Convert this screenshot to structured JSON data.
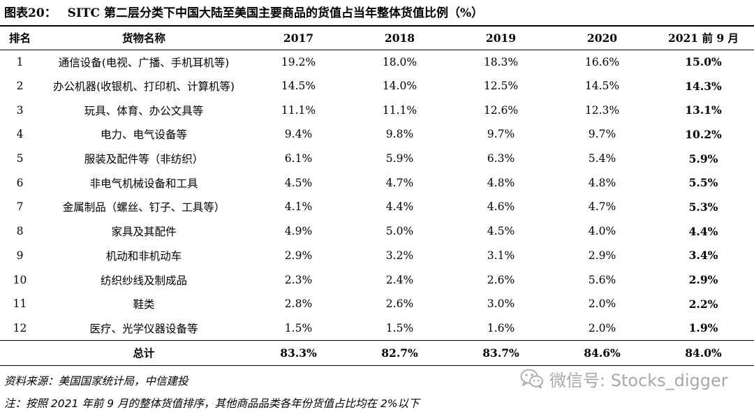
{
  "title": {
    "figure": "图表20：",
    "text": "SITC 第二层分类下中国大陆至美国主要商品的货值占当年整体货值比例（%）"
  },
  "table": {
    "headers": [
      "排名",
      "货物名称",
      "2017",
      "2018",
      "2019",
      "2020",
      "2021 前 9 月"
    ],
    "rows": [
      {
        "rank": "1",
        "name": "通信设备(电视、广播、手机耳机等)",
        "values": [
          "19.2%",
          "18.0%",
          "18.3%",
          "16.6%",
          "15.0%"
        ]
      },
      {
        "rank": "2",
        "name": "办公机器(收银机、打印机、计算机等)",
        "values": [
          "14.5%",
          "14.0%",
          "12.5%",
          "14.5%",
          "14.3%"
        ]
      },
      {
        "rank": "3",
        "name": "玩具、体育、办公文具等",
        "values": [
          "11.1%",
          "11.1%",
          "12.6%",
          "12.3%",
          "13.1%"
        ]
      },
      {
        "rank": "4",
        "name": "电力、电气设备等",
        "values": [
          "9.4%",
          "9.8%",
          "9.7%",
          "9.7%",
          "10.2%"
        ]
      },
      {
        "rank": "5",
        "name": "服装及配件等（非纺织）",
        "values": [
          "6.1%",
          "5.9%",
          "6.3%",
          "5.4%",
          "5.9%"
        ]
      },
      {
        "rank": "6",
        "name": "非电气机械设备和工具",
        "values": [
          "4.5%",
          "4.7%",
          "4.8%",
          "4.8%",
          "5.5%"
        ]
      },
      {
        "rank": "7",
        "name": "金属制品（螺丝、钉子、工具等）",
        "values": [
          "4.1%",
          "4.4%",
          "4.6%",
          "4.7%",
          "5.3%"
        ]
      },
      {
        "rank": "8",
        "name": "家具及其配件",
        "values": [
          "4.9%",
          "5.0%",
          "4.5%",
          "4.0%",
          "4.4%"
        ]
      },
      {
        "rank": "9",
        "name": "机动和非机动车",
        "values": [
          "2.9%",
          "3.2%",
          "3.1%",
          "2.9%",
          "3.4%"
        ]
      },
      {
        "rank": "10",
        "name": "纺织纱线及制成品",
        "values": [
          "2.3%",
          "2.4%",
          "2.6%",
          "5.6%",
          "2.9%"
        ]
      },
      {
        "rank": "11",
        "name": "鞋类",
        "values": [
          "2.8%",
          "2.6%",
          "3.0%",
          "2.0%",
          "2.2%"
        ]
      },
      {
        "rank": "12",
        "name": "医疗、光学仪器设备等",
        "values": [
          "1.5%",
          "1.5%",
          "1.6%",
          "2.0%",
          "1.9%"
        ]
      }
    ],
    "total": {
      "label": "总计",
      "values": [
        "83.3%",
        "82.7%",
        "83.7%",
        "84.6%",
        "84.0%"
      ]
    }
  },
  "source": "资料来源：美国国家统计局，中信建投",
  "note": "注：按照 2021 年前 9 月的整体货值排序，其他商品品类各年份货值占比均在 2%以下",
  "watermark": {
    "icon": "wechat-icon",
    "text": "微信号: Stocks_digger"
  }
}
